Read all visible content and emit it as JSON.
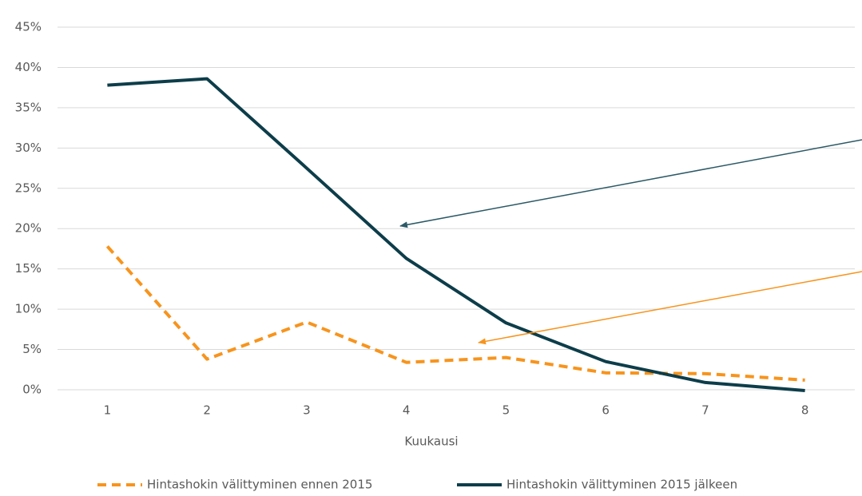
{
  "chart_data": {
    "type": "line",
    "x_label": "Kuukausi",
    "categories": [
      "1",
      "2",
      "3",
      "4",
      "5",
      "6",
      "7",
      "8"
    ],
    "series": [
      {
        "name": "Hintashokin välittyminen ennen 2015",
        "color": "#f7941d",
        "dashed": true,
        "values": [
          17.8,
          3.8,
          8.4,
          3.4,
          4.0,
          2.1,
          2.0,
          1.2
        ]
      },
      {
        "name": "Hintashokin välittyminen 2015 jälkeen",
        "color": "#0d3d4a",
        "dashed": false,
        "values": [
          37.8,
          38.6,
          27.5,
          16.3,
          8.3,
          3.5,
          0.9,
          -0.1
        ]
      }
    ],
    "ylim": [
      0,
      45
    ],
    "yticks": [
      {
        "value": 0,
        "label": "0%"
      },
      {
        "value": 5,
        "label": "5%"
      },
      {
        "value": 10,
        "label": "10%"
      },
      {
        "value": 15,
        "label": "15%"
      },
      {
        "value": 20,
        "label": "20%"
      },
      {
        "value": 25,
        "label": "25%"
      },
      {
        "value": 30,
        "label": "30%"
      },
      {
        "value": 35,
        "label": "35%"
      },
      {
        "value": 40,
        "label": "40%"
      },
      {
        "value": 45,
        "label": "45%"
      }
    ],
    "grid": true
  }
}
